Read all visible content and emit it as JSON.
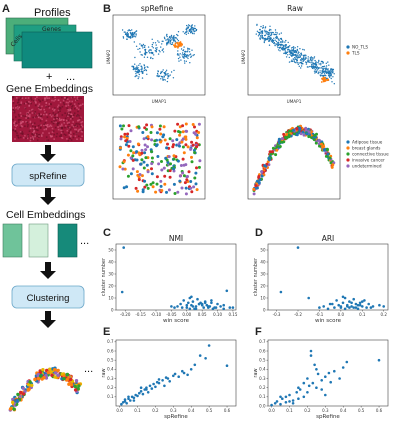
{
  "panel_letters": {
    "A": "A",
    "B": "B",
    "C": "C",
    "D": "D",
    "E": "E",
    "F": "F"
  },
  "flow": {
    "profiles_label": "Profiles",
    "genes_label": "Genes",
    "cells_label": "Cells",
    "plus": "+",
    "ellipsis": "...",
    "gene_embeddings_label": "Gene Embeddings",
    "sprefine_box": "spRefine",
    "cell_embeddings_label": "Cell Embeddings",
    "clustering_box": "Clustering",
    "colors": {
      "profile_card_back": "#4cae7a",
      "profile_card_front": "#0f8a7e",
      "box_fill": "#cfe8f6",
      "box_border": "#6aa6c8",
      "arrow": "#111111",
      "heatmap_base": "#a0183c"
    }
  },
  "panel_b": {
    "top_titles": [
      "spRefine",
      "Raw"
    ],
    "axis_x": "UMAP1",
    "axis_y": "UMAP2",
    "legend_top": [
      {
        "label": "NO_TLS",
        "color": "#1f77b4"
      },
      {
        "label": "TLS",
        "color": "#ff7f0e"
      }
    ],
    "legend_bottom": [
      {
        "label": "Adipose tissue",
        "color": "#1f77b4"
      },
      {
        "label": "breast glands",
        "color": "#ff7f0e"
      },
      {
        "label": "connective tissue",
        "color": "#2ca02c"
      },
      {
        "label": "invasive cancer",
        "color": "#d62728"
      },
      {
        "label": "undetermined",
        "color": "#9467bd"
      }
    ]
  },
  "chart_data": [
    {
      "id": "C",
      "type": "scatter",
      "title": "NMI",
      "xlabel": "win score",
      "ylabel": "cluster number",
      "xlim": [
        -0.23,
        0.16
      ],
      "ylim": [
        0,
        55
      ],
      "xticks": [
        "-0.20",
        "-0.15",
        "-0.10",
        "-0.05",
        "0.00",
        "0.05",
        "0.10",
        "0.15"
      ],
      "xtick_values": [
        -0.2,
        -0.15,
        -0.1,
        -0.05,
        0.0,
        0.05,
        0.1,
        0.15
      ],
      "yticks": [
        "0",
        "10",
        "20",
        "30",
        "40",
        "50"
      ],
      "ytick_values": [
        0,
        10,
        20,
        30,
        40,
        50
      ],
      "x": [
        -0.205,
        -0.21,
        0.13,
        -0.03,
        -0.02,
        -0.01,
        0.0,
        0.005,
        0.01,
        0.015,
        0.02,
        0.03,
        0.035,
        0.04,
        0.05,
        0.06,
        0.07,
        0.08,
        0.09,
        0.1,
        0.11,
        0.12,
        0.14,
        -0.04,
        -0.05,
        0.025,
        0.045,
        0.055,
        0.065,
        0.075,
        0.085,
        0.095,
        0.015,
        0.0,
        -0.015,
        0.03,
        0.06,
        0.02,
        0.04,
        0.01,
        0.07,
        0.05,
        0.08,
        0.12,
        0.15
      ],
      "y": [
        52,
        15,
        16,
        3,
        5,
        8,
        2,
        6,
        10,
        4,
        7,
        3,
        9,
        5,
        4,
        6,
        3,
        8,
        2,
        5,
        3,
        4,
        2,
        2,
        3,
        1,
        6,
        2,
        4,
        3,
        1,
        2,
        11,
        4,
        2,
        1,
        7,
        3,
        5,
        1,
        2,
        5,
        6,
        1,
        2
      ]
    },
    {
      "id": "D",
      "type": "scatter",
      "title": "ARI",
      "xlabel": "win score",
      "ylabel": "cluster number",
      "xlim": [
        -0.34,
        0.22
      ],
      "ylim": [
        0,
        55
      ],
      "xticks": [
        "-0.3",
        "-0.2",
        "-0.1",
        "0.0",
        "0.1",
        "0.2"
      ],
      "xtick_values": [
        -0.3,
        -0.2,
        -0.1,
        0.0,
        0.1,
        0.2
      ],
      "yticks": [
        "0",
        "10",
        "20",
        "30",
        "40",
        "50"
      ],
      "ytick_values": [
        0,
        10,
        20,
        30,
        40,
        50
      ],
      "x": [
        -0.2,
        -0.28,
        -0.15,
        -0.08,
        -0.05,
        -0.02,
        0.0,
        0.01,
        0.02,
        0.03,
        0.04,
        0.05,
        0.06,
        0.07,
        0.08,
        0.09,
        0.1,
        0.11,
        0.12,
        0.13,
        0.15,
        0.18,
        -0.1,
        -0.03,
        0.0,
        0.02,
        0.05,
        0.07,
        0.09,
        0.2,
        -0.06,
        0.04,
        0.01,
        -0.01,
        0.06,
        0.08,
        0.1,
        0.03,
        -0.04,
        0.14
      ],
      "y": [
        52,
        15,
        10,
        3,
        5,
        8,
        2,
        6,
        10,
        4,
        7,
        3,
        9,
        5,
        4,
        6,
        3,
        8,
        2,
        5,
        3,
        4,
        2,
        2,
        3,
        1,
        6,
        2,
        4,
        3,
        1,
        2,
        11,
        4,
        2,
        1,
        7,
        3,
        5,
        2
      ]
    },
    {
      "id": "E",
      "type": "scatter",
      "title": "",
      "xlabel": "spRefine",
      "ylabel": "raw",
      "xlim": [
        -0.02,
        0.65
      ],
      "ylim": [
        0,
        0.72
      ],
      "xticks": [
        "0.0",
        "0.1",
        "0.2",
        "0.3",
        "0.4",
        "0.5",
        "0.6"
      ],
      "xtick_values": [
        0.0,
        0.1,
        0.2,
        0.3,
        0.4,
        0.5,
        0.6
      ],
      "yticks": [
        "0.1",
        "0.2",
        "0.3",
        "0.4",
        "0.5",
        "0.6",
        "0.7"
      ],
      "ytick_values": [
        0.1,
        0.2,
        0.3,
        0.4,
        0.5,
        0.6,
        0.7
      ],
      "x": [
        0.01,
        0.02,
        0.03,
        0.04,
        0.05,
        0.06,
        0.07,
        0.08,
        0.09,
        0.1,
        0.11,
        0.12,
        0.13,
        0.14,
        0.15,
        0.16,
        0.17,
        0.18,
        0.19,
        0.2,
        0.21,
        0.22,
        0.24,
        0.25,
        0.27,
        0.28,
        0.3,
        0.31,
        0.33,
        0.35,
        0.36,
        0.38,
        0.4,
        0.42,
        0.45,
        0.48,
        0.5,
        0.6,
        0.03,
        0.05,
        0.08,
        0.12,
        0.15,
        0.22,
        0.26
      ],
      "y": [
        0.02,
        0.04,
        0.05,
        0.03,
        0.08,
        0.06,
        0.1,
        0.09,
        0.12,
        0.11,
        0.14,
        0.16,
        0.13,
        0.18,
        0.2,
        0.15,
        0.22,
        0.19,
        0.24,
        0.21,
        0.26,
        0.25,
        0.28,
        0.22,
        0.3,
        0.27,
        0.33,
        0.35,
        0.32,
        0.38,
        0.36,
        0.34,
        0.4,
        0.45,
        0.55,
        0.52,
        0.66,
        0.44,
        0.07,
        0.1,
        0.06,
        0.2,
        0.18,
        0.29,
        0.31
      ]
    },
    {
      "id": "F",
      "type": "scatter",
      "title": "",
      "xlabel": "spRefine",
      "ylabel": "raw",
      "xlim": [
        -0.02,
        0.65
      ],
      "ylim": [
        0,
        0.72
      ],
      "xticks": [
        "0.0",
        "0.1",
        "0.2",
        "0.3",
        "0.4",
        "0.5",
        "0.6"
      ],
      "xtick_values": [
        0.0,
        0.1,
        0.2,
        0.3,
        0.4,
        0.5,
        0.6
      ],
      "yticks": [
        "0.0",
        "0.1",
        "0.2",
        "0.3",
        "0.4",
        "0.5",
        "0.6",
        "0.7"
      ],
      "ytick_values": [
        0.0,
        0.1,
        0.2,
        0.3,
        0.4,
        0.5,
        0.6,
        0.7
      ],
      "x": [
        0.0,
        0.02,
        0.03,
        0.05,
        0.06,
        0.08,
        0.1,
        0.12,
        0.14,
        0.15,
        0.16,
        0.18,
        0.2,
        0.21,
        0.22,
        0.24,
        0.25,
        0.26,
        0.28,
        0.3,
        0.32,
        0.35,
        0.38,
        0.4,
        0.42,
        0.22,
        0.23,
        0.6,
        0.05,
        0.1,
        0.15,
        0.2,
        0.25,
        0.3,
        0.12,
        0.18,
        0.08,
        0.28,
        0.33
      ],
      "y": [
        0.01,
        0.03,
        0.05,
        0.02,
        0.08,
        0.1,
        0.12,
        0.06,
        0.15,
        0.2,
        0.18,
        0.25,
        0.3,
        0.22,
        0.55,
        0.45,
        0.4,
        0.35,
        0.28,
        0.32,
        0.36,
        0.38,
        0.3,
        0.42,
        0.48,
        0.6,
        0.25,
        0.5,
        0.1,
        0.05,
        0.08,
        0.15,
        0.2,
        0.12,
        0.03,
        0.1,
        0.04,
        0.18,
        0.26
      ]
    }
  ]
}
